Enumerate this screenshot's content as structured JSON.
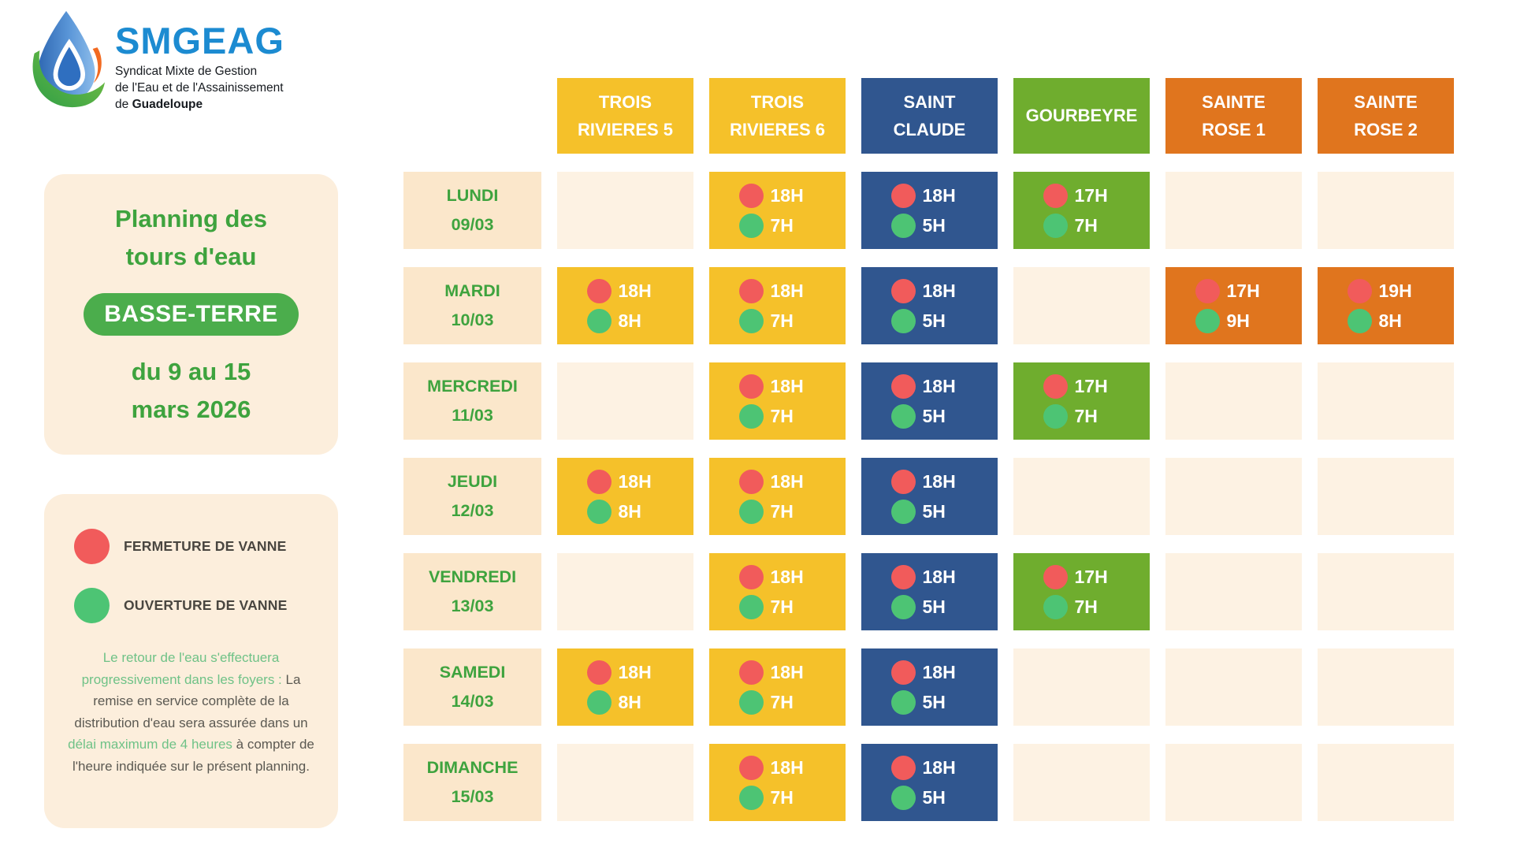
{
  "logo": {
    "name": "SMGEAG",
    "subtitle_line1": "Syndicat Mixte de Gestion",
    "subtitle_line2": "de l'Eau et de l'Assainissement",
    "subtitle_line3_prefix": "de ",
    "subtitle_line3_bold": "Guadeloupe"
  },
  "info_panel": {
    "title_line1": "Planning des",
    "title_line2": "tours d'eau",
    "badge": "BASSE-TERRE",
    "period_line1": "du 9 au 15",
    "period_line2": "mars 2026"
  },
  "legend_panel": {
    "items": [
      {
        "id": "valve-close",
        "color": "#F15B5B",
        "label": "FERMETURE DE VANNE"
      },
      {
        "id": "valve-open",
        "color": "#4DC474",
        "label": "OUVERTURE DE VANNE"
      }
    ],
    "note_segments": [
      {
        "text": "Le retour de l'eau s'effectuera progressivement dans les foyers :",
        "tone": "green"
      },
      {
        "text": " La remise en service complète de la distribution d'eau sera assurée dans un ",
        "tone": "gray"
      },
      {
        "text": "délai maximum de 4 heures",
        "tone": "green"
      },
      {
        "text": " à compter de l'heure indiquée sur le présent planning.",
        "tone": "gray"
      }
    ]
  },
  "schedule": {
    "columns": [
      {
        "id": "trois-rivieres-5",
        "label": "TROIS\nRIVIERES 5",
        "color": "#F5C12A"
      },
      {
        "id": "trois-rivieres-6",
        "label": "TROIS\nRIVIERES 6",
        "color": "#F5C12A"
      },
      {
        "id": "saint-claude",
        "label": "SAINT\nCLAUDE",
        "color": "#30568F"
      },
      {
        "id": "gourbeyre",
        "label": "GOURBEYRE",
        "color": "#6FAD2E"
      },
      {
        "id": "sainte-rose-1",
        "label": "SAINTE\nROSE 1",
        "color": "#E0751E"
      },
      {
        "id": "sainte-rose-2",
        "label": "SAINTE\nROSE 2",
        "color": "#E0751E"
      }
    ],
    "rows": [
      {
        "day": "LUNDI",
        "date": "09/03",
        "cells": [
          null,
          {
            "close": "18H",
            "open": "7H"
          },
          {
            "close": "18H",
            "open": "5H"
          },
          {
            "close": "17H",
            "open": "7H"
          },
          null,
          null
        ]
      },
      {
        "day": "MARDI",
        "date": "10/03",
        "cells": [
          {
            "close": "18H",
            "open": "8H"
          },
          {
            "close": "18H",
            "open": "7H"
          },
          {
            "close": "18H",
            "open": "5H"
          },
          null,
          {
            "close": "17H",
            "open": "9H"
          },
          {
            "close": "19H",
            "open": "8H"
          }
        ]
      },
      {
        "day": "MERCREDI",
        "date": "11/03",
        "cells": [
          null,
          {
            "close": "18H",
            "open": "7H"
          },
          {
            "close": "18H",
            "open": "5H"
          },
          {
            "close": "17H",
            "open": "7H"
          },
          null,
          null
        ]
      },
      {
        "day": "JEUDI",
        "date": "12/03",
        "cells": [
          {
            "close": "18H",
            "open": "8H"
          },
          {
            "close": "18H",
            "open": "7H"
          },
          {
            "close": "18H",
            "open": "5H"
          },
          null,
          null,
          null
        ]
      },
      {
        "day": "VENDREDI",
        "date": "13/03",
        "cells": [
          null,
          {
            "close": "18H",
            "open": "7H"
          },
          {
            "close": "18H",
            "open": "5H"
          },
          {
            "close": "17H",
            "open": "7H"
          },
          null,
          null
        ]
      },
      {
        "day": "SAMEDI",
        "date": "14/03",
        "cells": [
          {
            "close": "18H",
            "open": "8H"
          },
          {
            "close": "18H",
            "open": "7H"
          },
          {
            "close": "18H",
            "open": "5H"
          },
          null,
          null,
          null
        ]
      },
      {
        "day": "DIMANCHE",
        "date": "15/03",
        "cells": [
          null,
          {
            "close": "18H",
            "open": "7H"
          },
          {
            "close": "18H",
            "open": "5H"
          },
          null,
          null,
          null
        ]
      }
    ]
  },
  "colors": {
    "brand_blue": "#1C8BD1",
    "title_green": "#3EA33E",
    "badge_green": "#4BAD4C",
    "panel_cream": "#FCEEDC",
    "day_cell_cream": "#FBE7CB",
    "empty_cell_cream": "#FDF2E3",
    "valve_close_red": "#F15B5B",
    "valve_open_green": "#4DC474",
    "column_yellow": "#F5C12A",
    "column_blue": "#30568F",
    "column_green": "#6FAD2E",
    "column_orange": "#E0751E"
  }
}
